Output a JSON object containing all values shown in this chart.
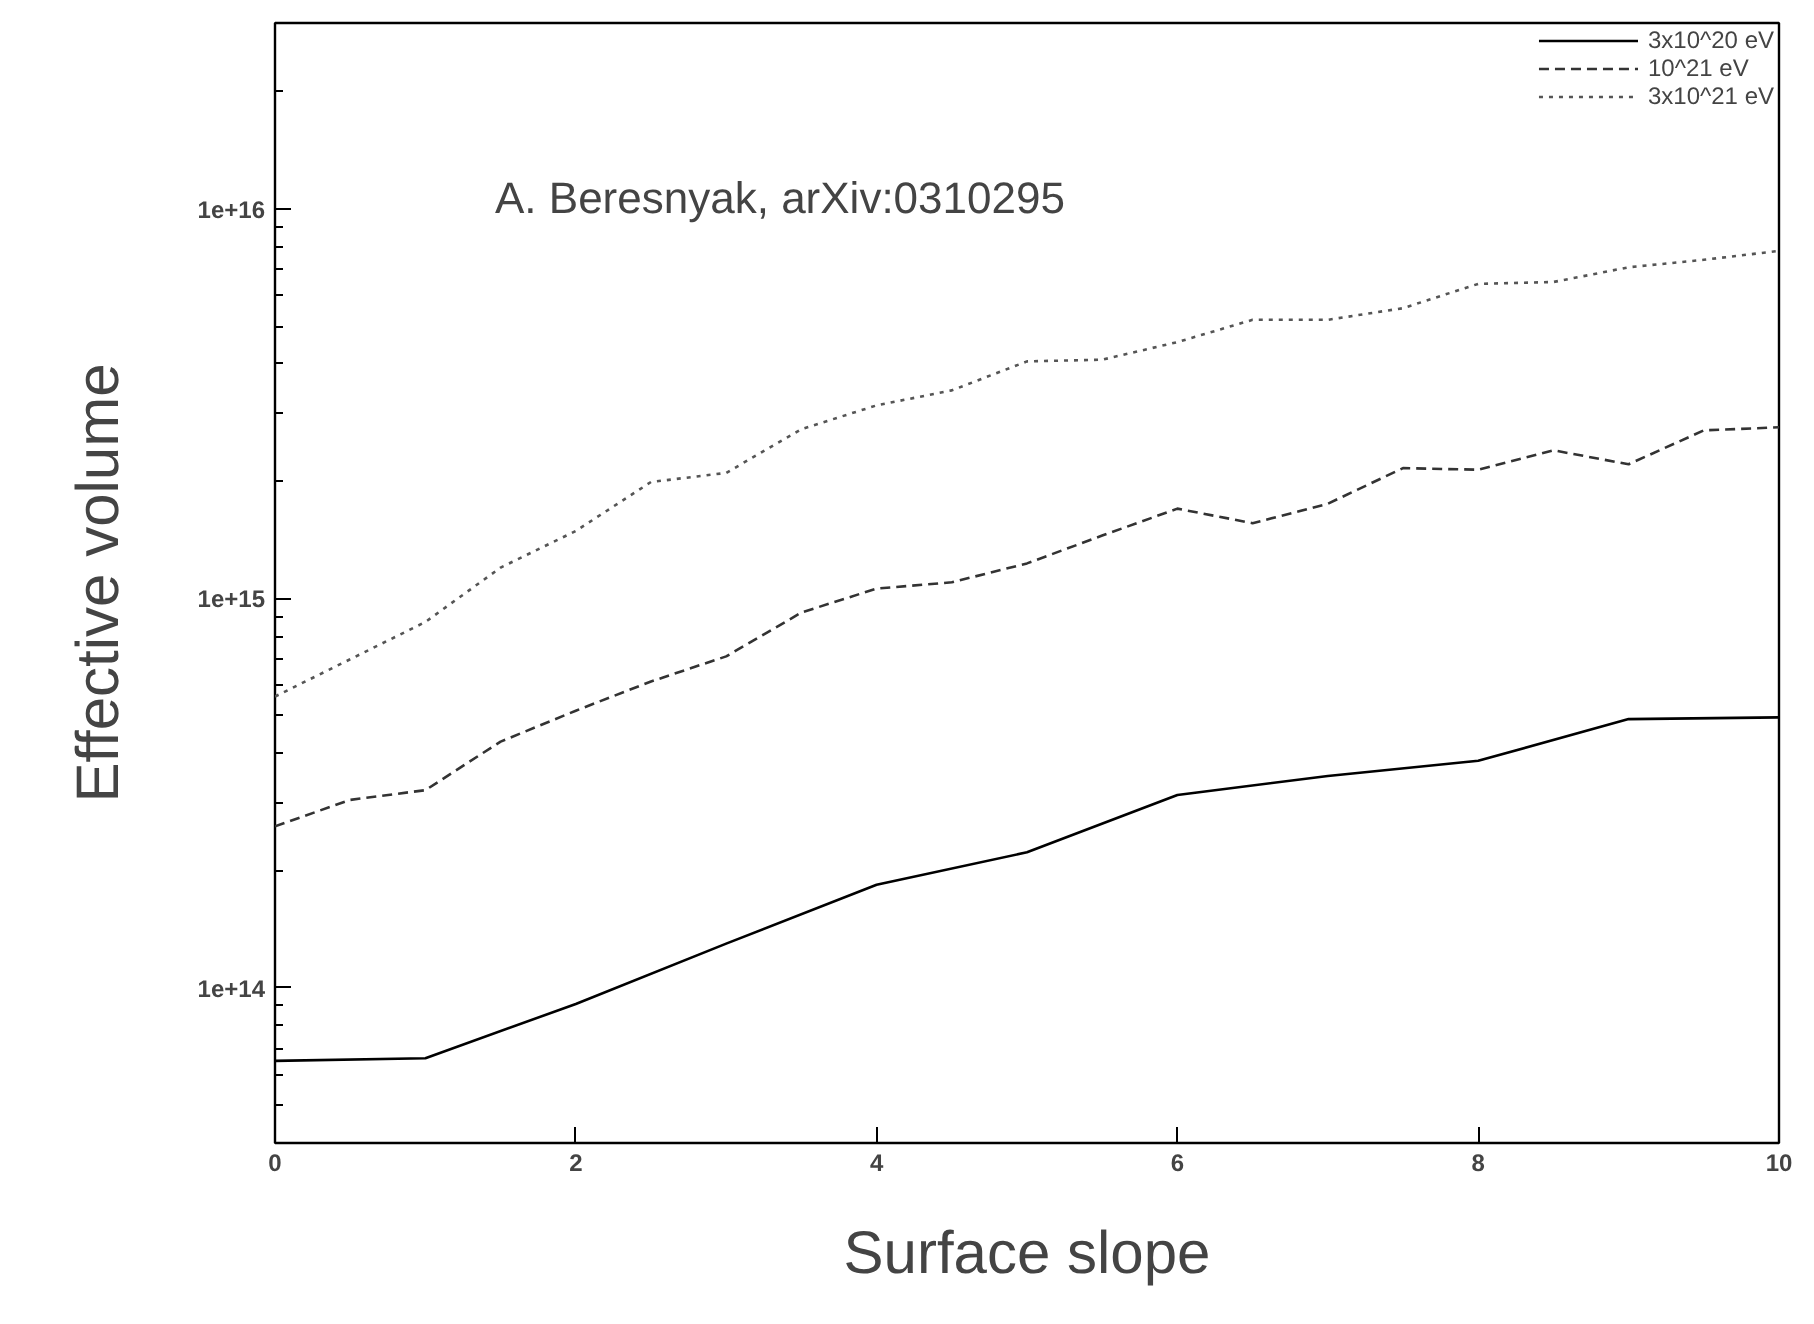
{
  "chart_data": {
    "type": "line",
    "xlabel": "Surface slope",
    "ylabel": "Effective volume",
    "log": "y",
    "grid": false,
    "legend": "top right",
    "xlim": [
      0,
      10
    ],
    "ylim": [
      40000000000000.0,
      3e+16
    ],
    "xticks": [
      0,
      2,
      4,
      6,
      8,
      10
    ],
    "yticks": [
      {
        "value": 100000000000000.0,
        "label": "1e+14"
      },
      {
        "value": 1000000000000000.0,
        "label": "1e+15"
      },
      {
        "value": 1e+16,
        "label": "1e+16"
      }
    ],
    "annotations": [
      "A. Beresnyak, arXiv:0310295"
    ],
    "series": [
      {
        "name": "3x10^20 eV",
        "color": "#000000",
        "line_style": "solid",
        "x": [
          0,
          1,
          2,
          3,
          4,
          5,
          6,
          7,
          8,
          9,
          10
        ],
        "values": [
          65000000000000.0,
          66000000000000.0,
          91000000000000.0,
          130000000000000.0,
          184000000000000.0,
          223000000000000.0,
          313000000000000.0,
          350000000000000.0,
          383000000000000.0,
          490000000000000.0,
          495000000000000.0
        ]
      },
      {
        "name": "10^21 eV",
        "color": "#333333",
        "line_style": "dashed",
        "x": [
          0,
          0.5,
          1,
          1.5,
          2,
          2.5,
          3,
          3.5,
          4,
          4.5,
          5,
          5.5,
          6,
          6.5,
          7,
          7.5,
          8,
          8.5,
          9,
          9.5,
          10
        ],
        "values": [
          260000000000000.0,
          304000000000000.0,
          322000000000000.0,
          429000000000000.0,
          515000000000000.0,
          612000000000000.0,
          710000000000000.0,
          920000000000000.0,
          1060000000000000.0,
          1100000000000000.0,
          1230000000000000.0,
          1450000000000000.0,
          1700000000000000.0,
          1560000000000000.0,
          1750000000000000.0,
          2160000000000000.0,
          2140000000000000.0,
          2400000000000000.0,
          2210000000000000.0,
          2700000000000000.0,
          2750000000000000.0
        ]
      },
      {
        "name": "3x10^21 eV",
        "color": "#555555",
        "line_style": "dotted",
        "x": [
          0,
          0.5,
          1,
          1.5,
          2,
          2.5,
          3,
          3.5,
          4,
          4.5,
          5,
          5.5,
          6,
          6.5,
          7,
          7.5,
          8,
          8.5,
          9,
          9.5,
          10
        ],
        "values": [
          560000000000000.0,
          698000000000000.0,
          870000000000000.0,
          1200000000000000.0,
          1490000000000000.0,
          1990000000000000.0,
          2100000000000000.0,
          2720000000000000.0,
          3130000000000000.0,
          3420000000000000.0,
          4060000000000000.0,
          4100000000000000.0,
          4550000000000000.0,
          5190000000000000.0,
          5190000000000000.0,
          5560000000000000.0,
          6420000000000000.0,
          6490000000000000.0,
          7080000000000000.0,
          7400000000000000.0,
          7800000000000000.0
        ]
      }
    ]
  }
}
